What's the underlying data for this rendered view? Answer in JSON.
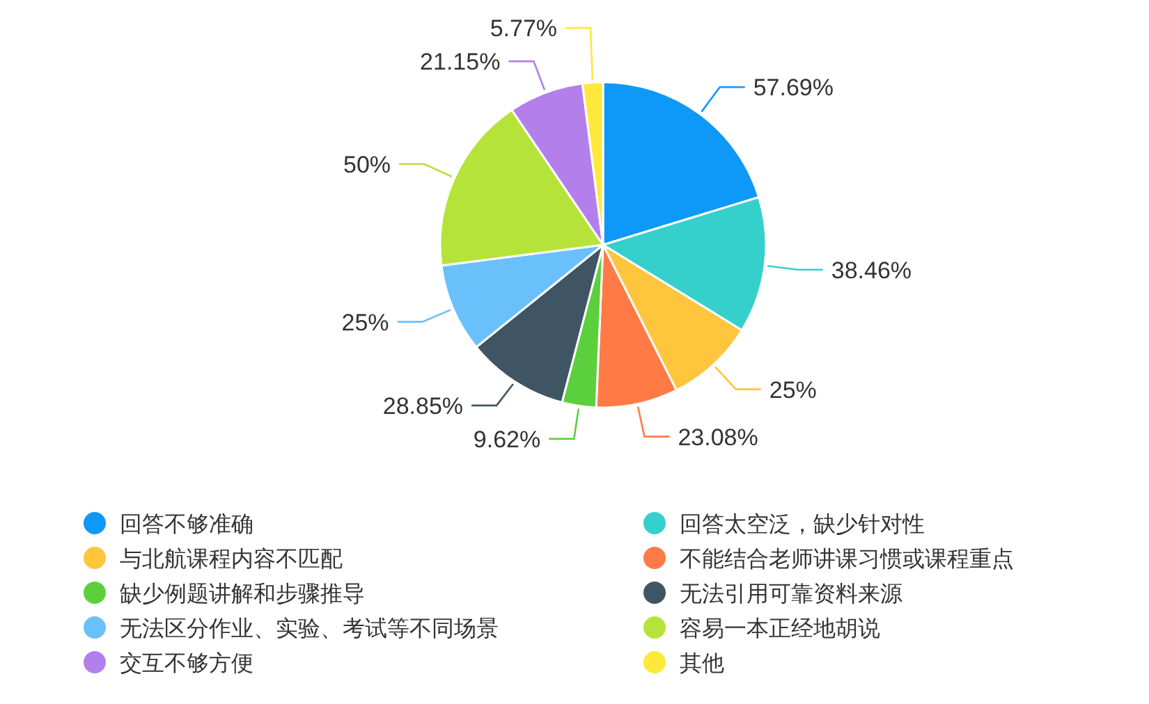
{
  "chart_data": {
    "type": "pie",
    "categories": [
      "回答不够准确",
      "回答太空泛，缺少针对性",
      "与北航课程内容不匹配",
      "不能结合老师讲课习惯或课程重点",
      "缺少例题讲解和步骤推导",
      "无法引用可靠资料来源",
      "无法区分作业、实验、考试等不同场景",
      "容易一本正经地胡说",
      "交互不够方便",
      "其他"
    ],
    "values": [
      57.69,
      38.46,
      25,
      23.08,
      9.62,
      28.85,
      25,
      50,
      21.15,
      5.77
    ],
    "colors": [
      "#0e98f8",
      "#35d0cc",
      "#ffc53d",
      "#ff7a45",
      "#5ccf3c",
      "#3f5563",
      "#6ac0fb",
      "#b6e33a",
      "#b37feb",
      "#ffe83c"
    ],
    "value_labels": [
      "57.69%",
      "38.46%",
      "25%",
      "23.08%",
      "9.62%",
      "28.85%",
      "25%",
      "50%",
      "21.15%",
      "5.77%"
    ],
    "legend": "bottom"
  }
}
